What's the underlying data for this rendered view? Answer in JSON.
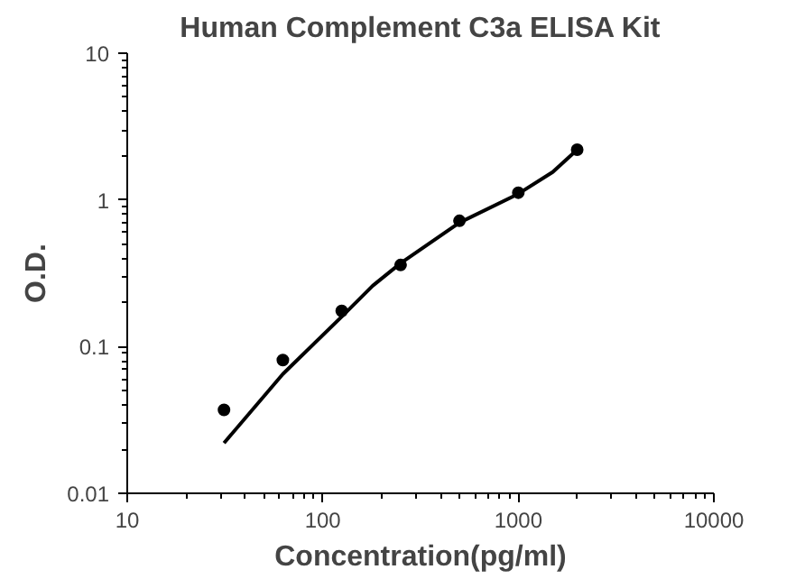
{
  "chart_data": {
    "type": "scatter",
    "title": "Human Complement C3a ELISA Kit",
    "xlabel": "Concentration(pg/ml)",
    "ylabel": "O.D.",
    "log": "xy",
    "grid": false,
    "xlim": [
      10,
      10000
    ],
    "ylim": [
      0.01,
      10
    ],
    "xticks": [
      10,
      100,
      1000,
      10000
    ],
    "yticks": [
      0.01,
      0.1,
      1,
      10
    ],
    "series": [
      {
        "color": "#000000",
        "marker": "circle",
        "x": [
          31.25,
          62.5,
          125,
          250,
          500,
          1000,
          2000
        ],
        "values": [
          0.037,
          0.081,
          0.175,
          0.36,
          0.72,
          1.12,
          2.2
        ]
      },
      {
        "type": "line",
        "color": "#000000",
        "marker": "none",
        "line_style": "solid",
        "x": [
          31.25,
          62.5,
          125,
          180,
          250,
          500,
          1000,
          1500,
          2000
        ],
        "values": [
          0.022,
          0.065,
          0.16,
          0.26,
          0.37,
          0.7,
          1.1,
          1.55,
          2.2
        ]
      }
    ]
  }
}
